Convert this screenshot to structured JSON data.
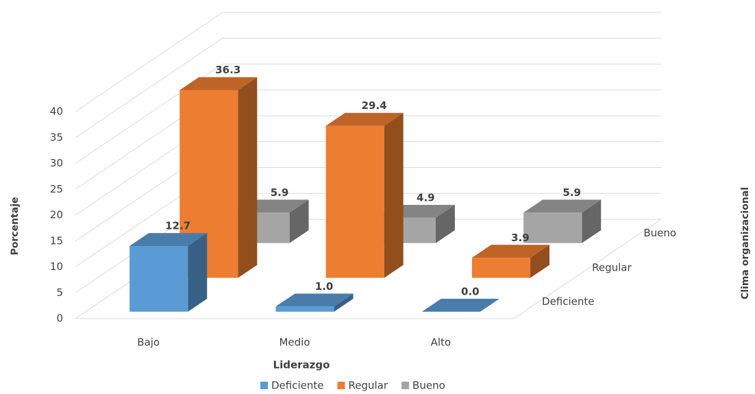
{
  "chart_data": {
    "type": "bar3d",
    "x_label": "Liderazgo",
    "y_label": "Porcentaje",
    "depth_label": "Clima organizacional",
    "categories": [
      "Bajo",
      "Medio",
      "Alto"
    ],
    "series": [
      {
        "name": "Deficiente",
        "color": "#5b9bd5",
        "values": [
          12.7,
          1.0,
          0.0
        ],
        "value_labels": [
          "12.7",
          "1.0",
          "0.0"
        ]
      },
      {
        "name": "Regular",
        "color": "#ed7d31",
        "values": [
          36.3,
          29.4,
          3.9
        ],
        "value_labels": [
          "36.3",
          "29.4",
          "3.9"
        ]
      },
      {
        "name": "Bueno",
        "color": "#a5a5a5",
        "values": [
          5.9,
          4.9,
          5.9
        ],
        "value_labels": [
          "5.9",
          "4.9",
          "5.9"
        ]
      }
    ],
    "ylim": [
      0,
      40
    ],
    "yticks": [
      0,
      5,
      10,
      15,
      20,
      25,
      30,
      35,
      40
    ],
    "grid": true,
    "legend": "bottom"
  }
}
